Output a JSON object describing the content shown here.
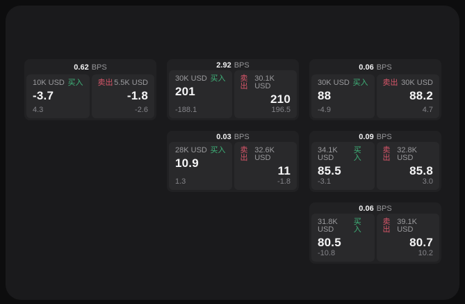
{
  "labels": {
    "bps": "BPS",
    "buy": "买入",
    "sell": "卖出"
  },
  "colors": {
    "buy_green": "#3fb47a",
    "sell_red": "#d8566a",
    "page_bg": "#0d0d0e",
    "window_bg": "#1a1a1c",
    "card_bg": "#212123",
    "cell_bg": "#29292b"
  },
  "cards": [
    {
      "bps": "0.62",
      "buy": {
        "amount": "10K USD",
        "price": "-3.7",
        "delta": "4.3"
      },
      "sell": {
        "amount": "5.5K USD",
        "price": "-1.8",
        "delta": "-2.6"
      }
    },
    {
      "bps": "2.92",
      "buy": {
        "amount": "30K USD",
        "price": "201",
        "delta": "-188.1"
      },
      "sell": {
        "amount": "30.1K USD",
        "price": "210",
        "delta": "196.5"
      }
    },
    {
      "bps": "0.06",
      "buy": {
        "amount": "30K USD",
        "price": "88",
        "delta": "-4.9"
      },
      "sell": {
        "amount": "30K USD",
        "price": "88.2",
        "delta": "4.7"
      }
    },
    {
      "bps": "0.03",
      "buy": {
        "amount": "28K USD",
        "price": "10.9",
        "delta": "1.3"
      },
      "sell": {
        "amount": "32.6K USD",
        "price": "11",
        "delta": "-1.8"
      }
    },
    {
      "bps": "0.09",
      "buy": {
        "amount": "34.1K USD",
        "price": "85.5",
        "delta": "-3.1"
      },
      "sell": {
        "amount": "32.8K USD",
        "price": "85.8",
        "delta": "3.0"
      }
    },
    {
      "bps": "0.06",
      "buy": {
        "amount": "31.8K USD",
        "price": "80.5",
        "delta": "-10.8"
      },
      "sell": {
        "amount": "39.1K USD",
        "price": "80.7",
        "delta": "10.2"
      }
    }
  ]
}
